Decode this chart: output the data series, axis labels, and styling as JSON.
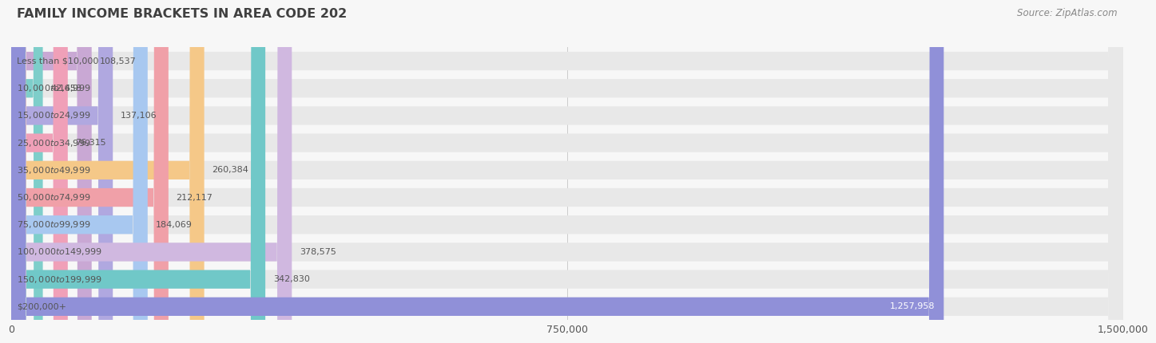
{
  "title": "FAMILY INCOME BRACKETS IN AREA CODE 202",
  "source": "Source: ZipAtlas.com",
  "categories": [
    "Less than $10,000",
    "$10,000 to $14,999",
    "$15,000 to $24,999",
    "$25,000 to $34,999",
    "$35,000 to $49,999",
    "$50,000 to $74,999",
    "$75,000 to $99,999",
    "$100,000 to $149,999",
    "$150,000 to $199,999",
    "$200,000+"
  ],
  "values": [
    108537,
    42658,
    137106,
    76315,
    260384,
    212117,
    184069,
    378575,
    342830,
    1257958
  ],
  "bar_colors": [
    "#c9a8d4",
    "#7ececa",
    "#b0a8e0",
    "#f0a0b8",
    "#f5c888",
    "#f0a0a8",
    "#a8c8f0",
    "#d0b8e0",
    "#70c8c8",
    "#9090d8"
  ],
  "value_labels": [
    "108,537",
    "42,658",
    "137,106",
    "76,315",
    "260,384",
    "212,117",
    "184,069",
    "378,575",
    "342,830",
    "1,257,958"
  ],
  "xlim": [
    0,
    1500000
  ],
  "xticks": [
    0,
    750000,
    1500000
  ],
  "xtick_labels": [
    "0",
    "750,000",
    "1,500,000"
  ],
  "bg_color": "#f7f7f7",
  "bar_bg_color": "#e8e8e8",
  "title_color": "#404040",
  "label_color": "#555555",
  "source_color": "#888888",
  "value_label_color": "#555555",
  "last_bar_label_color": "#ffffff"
}
